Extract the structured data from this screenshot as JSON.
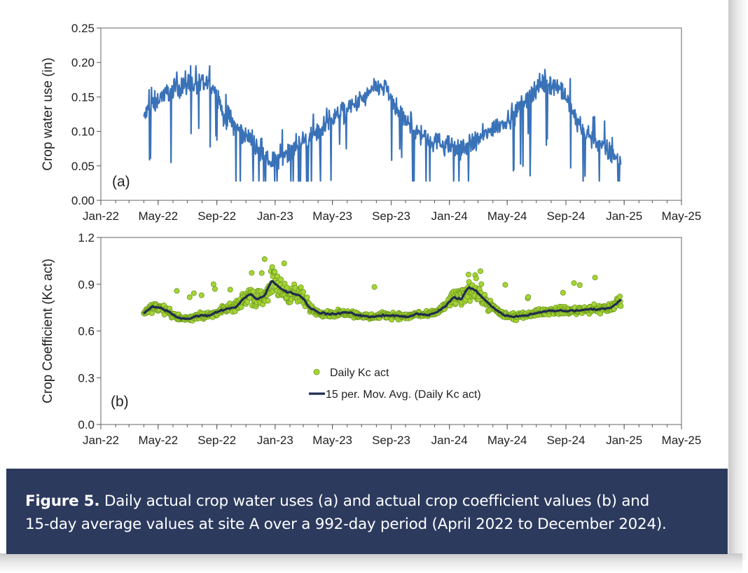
{
  "figure": {
    "label": "Figure 5.",
    "caption_line1": " Daily actual crop water uses (a) and actual crop coefficient values (b) and",
    "caption_line2": "15-day average values at site A over a 992-day period (April 2022 to December 2024)."
  },
  "colors": {
    "water_line": "#3a72b8",
    "kc_fill": "#a5d535",
    "kc_edge": "#6e9a1e",
    "moving_avg": "#1f2b4d",
    "caption_bg": "#2c3a5e"
  },
  "chart_data": [
    {
      "type": "line",
      "panel_label": "(a)",
      "xlabel": "",
      "ylabel": "Crop water use (in)",
      "x_tick_labels": [
        "Jan-22",
        "May-22",
        "Sep-22",
        "Jan-23",
        "May-23",
        "Sep-23",
        "Jan-24",
        "May-24",
        "Sep-24",
        "Jan-25",
        "May-25"
      ],
      "xlim": [
        "2022-01-01",
        "2025-05-01"
      ],
      "ylim": [
        0,
        0.25
      ],
      "y_ticks": [
        "0.00",
        "0.05",
        "0.10",
        "0.15",
        "0.20",
        "0.25"
      ],
      "grid": false,
      "series": [
        {
          "x": [
            "2022-04-01",
            "2022-04-20",
            "2022-05-05",
            "2022-05-25",
            "2022-06-15",
            "2022-07-05",
            "2022-07-25",
            "2022-08-15",
            "2022-09-01",
            "2022-09-15",
            "2022-10-01",
            "2022-10-20",
            "2022-11-10",
            "2022-12-01",
            "2022-12-20",
            "2023-01-05",
            "2023-01-25",
            "2023-02-15",
            "2023-03-10",
            "2023-04-01",
            "2023-04-20",
            "2023-05-10",
            "2023-06-01",
            "2023-06-20",
            "2023-07-10",
            "2023-07-25",
            "2023-08-10",
            "2023-08-25",
            "2023-09-10",
            "2023-10-01",
            "2023-10-25",
            "2023-11-15",
            "2023-12-05",
            "2023-12-25",
            "2024-01-15",
            "2024-02-05",
            "2024-02-25",
            "2024-03-15",
            "2024-04-05",
            "2024-04-25",
            "2024-05-15",
            "2024-06-01",
            "2024-06-20",
            "2024-07-10",
            "2024-07-25",
            "2024-08-15",
            "2024-09-01",
            "2024-09-20",
            "2024-10-10",
            "2024-10-30",
            "2024-11-20",
            "2024-12-10",
            "2024-12-25"
          ],
          "values": [
            0.12,
            0.14,
            0.15,
            0.16,
            0.165,
            0.17,
            0.165,
            0.17,
            0.16,
            0.12,
            0.115,
            0.1,
            0.09,
            0.065,
            0.055,
            0.06,
            0.07,
            0.08,
            0.09,
            0.1,
            0.115,
            0.125,
            0.13,
            0.14,
            0.15,
            0.16,
            0.165,
            0.16,
            0.13,
            0.115,
            0.1,
            0.09,
            0.085,
            0.08,
            0.075,
            0.08,
            0.085,
            0.095,
            0.105,
            0.115,
            0.125,
            0.14,
            0.155,
            0.17,
            0.17,
            0.165,
            0.15,
            0.12,
            0.1,
            0.09,
            0.075,
            0.065,
            0.06
          ]
        }
      ]
    },
    {
      "type": "scatter",
      "panel_label": "(b)",
      "xlabel": "",
      "ylabel": "Crop Coefficient (Kc act)",
      "x_tick_labels": [
        "Jan-22",
        "May-22",
        "Sep-22",
        "Jan-23",
        "May-23",
        "Sep-23",
        "Jan-24",
        "May-24",
        "Sep-24",
        "Jan-25",
        "May-25"
      ],
      "xlim": [
        "2022-01-01",
        "2025-05-01"
      ],
      "ylim": [
        0,
        1.2
      ],
      "y_ticks": [
        "0.0",
        "0.3",
        "0.6",
        "0.9",
        "1.2"
      ],
      "grid": false,
      "legend_position": "center-bottom",
      "series": [
        {
          "name": "Daily Kc act",
          "x": [
            "2022-04-01",
            "2022-04-20",
            "2022-05-05",
            "2022-05-25",
            "2022-06-15",
            "2022-07-05",
            "2022-07-25",
            "2022-08-15",
            "2022-09-01",
            "2022-09-20",
            "2022-10-10",
            "2022-10-25",
            "2022-11-10",
            "2022-11-25",
            "2022-12-10",
            "2022-12-25",
            "2023-01-10",
            "2023-01-25",
            "2023-02-10",
            "2023-02-25",
            "2023-03-15",
            "2023-04-01",
            "2023-04-20",
            "2023-05-10",
            "2023-06-01",
            "2023-06-25",
            "2023-07-20",
            "2023-08-15",
            "2023-09-10",
            "2023-10-05",
            "2023-10-25",
            "2023-11-15",
            "2023-12-05",
            "2023-12-25",
            "2024-01-10",
            "2024-01-25",
            "2024-02-10",
            "2024-02-25",
            "2024-03-15",
            "2024-04-05",
            "2024-04-25",
            "2024-05-15",
            "2024-06-10",
            "2024-07-05",
            "2024-08-01",
            "2024-08-25",
            "2024-09-20",
            "2024-10-15",
            "2024-11-10",
            "2024-12-05",
            "2024-12-25"
          ],
          "values": [
            0.71,
            0.76,
            0.75,
            0.72,
            0.68,
            0.68,
            0.7,
            0.7,
            0.72,
            0.74,
            0.75,
            0.8,
            0.84,
            0.8,
            0.83,
            0.92,
            0.88,
            0.85,
            0.84,
            0.82,
            0.75,
            0.72,
            0.71,
            0.71,
            0.72,
            0.7,
            0.69,
            0.7,
            0.7,
            0.69,
            0.71,
            0.7,
            0.72,
            0.76,
            0.82,
            0.8,
            0.88,
            0.86,
            0.8,
            0.74,
            0.7,
            0.69,
            0.7,
            0.72,
            0.73,
            0.73,
            0.73,
            0.74,
            0.74,
            0.75,
            0.8
          ]
        },
        {
          "name": "15 per. Mov. Avg. (Daily Kc act)",
          "x": [
            "2022-04-01",
            "2022-04-20",
            "2022-05-05",
            "2022-05-25",
            "2022-06-15",
            "2022-07-05",
            "2022-07-25",
            "2022-08-15",
            "2022-09-01",
            "2022-09-20",
            "2022-10-10",
            "2022-10-25",
            "2022-11-10",
            "2022-11-25",
            "2022-12-10",
            "2022-12-25",
            "2023-01-10",
            "2023-01-25",
            "2023-02-10",
            "2023-02-25",
            "2023-03-15",
            "2023-04-01",
            "2023-04-20",
            "2023-05-10",
            "2023-06-01",
            "2023-06-25",
            "2023-07-20",
            "2023-08-15",
            "2023-09-10",
            "2023-10-05",
            "2023-10-25",
            "2023-11-15",
            "2023-12-05",
            "2023-12-25",
            "2024-01-10",
            "2024-01-25",
            "2024-02-10",
            "2024-02-25",
            "2024-03-15",
            "2024-04-05",
            "2024-04-25",
            "2024-05-15",
            "2024-06-10",
            "2024-07-05",
            "2024-08-01",
            "2024-08-25",
            "2024-09-20",
            "2024-10-15",
            "2024-11-10",
            "2024-12-05",
            "2024-12-25"
          ],
          "values": [
            0.71,
            0.76,
            0.75,
            0.72,
            0.68,
            0.68,
            0.7,
            0.7,
            0.72,
            0.74,
            0.75,
            0.8,
            0.84,
            0.8,
            0.83,
            0.92,
            0.88,
            0.85,
            0.84,
            0.82,
            0.75,
            0.72,
            0.71,
            0.71,
            0.72,
            0.7,
            0.69,
            0.7,
            0.7,
            0.69,
            0.71,
            0.7,
            0.72,
            0.76,
            0.82,
            0.8,
            0.88,
            0.86,
            0.8,
            0.74,
            0.7,
            0.69,
            0.7,
            0.72,
            0.73,
            0.73,
            0.73,
            0.74,
            0.74,
            0.75,
            0.8
          ]
        }
      ]
    }
  ]
}
